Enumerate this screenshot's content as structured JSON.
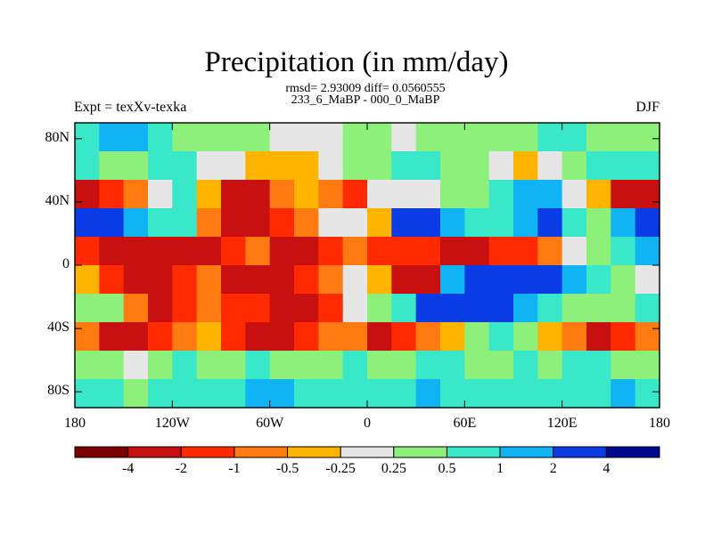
{
  "title": "Precipitation (in mm/day)",
  "stats": {
    "line1": "rmsd= 2.93009 diff= 0.0560555",
    "line2": "233_6_MaBP - 000_0_MaBP"
  },
  "expt": "Expt = texXv-texka",
  "season": "DJF",
  "axes": {
    "x_ticks": [
      "180",
      "120W",
      "60W",
      "0",
      "60E",
      "120E",
      "180"
    ],
    "y_ticks": [
      "80N",
      "40N",
      "0",
      "40S",
      "80S"
    ]
  },
  "colorbar": {
    "colors": [
      "#7a0000",
      "#c81010",
      "#ff2a00",
      "#ff7a10",
      "#ffb400",
      "#e6e6e6",
      "#8cf07a",
      "#38e8c8",
      "#10b4f4",
      "#0a3ce6",
      "#000a90"
    ],
    "labels": [
      "-4",
      "-2",
      "-1",
      "-0.5",
      "-0.25",
      "0.25",
      "0.5",
      "1",
      "2",
      "4"
    ]
  },
  "chart_data": {
    "type": "heatmap",
    "title": "Precipitation (in mm/day)",
    "xlabel": "",
    "ylabel": "",
    "x_range": [
      -180,
      180
    ],
    "y_range": [
      -90,
      90
    ],
    "levels": [
      -4,
      -2,
      -1,
      -0.5,
      -0.25,
      0.25,
      0.5,
      1,
      2,
      4
    ],
    "rows": [
      [
        2,
        3,
        3,
        2,
        1,
        1,
        1,
        1,
        0,
        0,
        0,
        1,
        1,
        0,
        1,
        1,
        1,
        1,
        1,
        2,
        2,
        1,
        1,
        1
      ],
      [
        2,
        1,
        1,
        2,
        2,
        0,
        0,
        -1,
        -1,
        -1,
        0,
        1,
        1,
        2,
        2,
        1,
        1,
        0,
        -1,
        0,
        1,
        2,
        2,
        2
      ],
      [
        -4,
        -3,
        -2,
        0,
        2,
        -1,
        -4,
        -4,
        -2,
        -1,
        -2,
        -3,
        0,
        0,
        0,
        1,
        1,
        2,
        3,
        3,
        0,
        -1,
        -4,
        -4
      ],
      [
        4,
        4,
        3,
        2,
        2,
        -2,
        -4,
        -4,
        -3,
        -2,
        0,
        0,
        -1,
        4,
        4,
        3,
        2,
        2,
        3,
        4,
        2,
        1,
        3,
        4
      ],
      [
        -3,
        -4,
        -4,
        -4,
        -4,
        -4,
        -3,
        -2,
        -4,
        -4,
        -3,
        -2,
        -3,
        -3,
        -3,
        -4,
        -4,
        -3,
        -3,
        -2,
        0,
        1,
        2,
        3
      ],
      [
        -1,
        -3,
        -4,
        -4,
        -3,
        -2,
        -4,
        -4,
        -4,
        -3,
        -2,
        0,
        -1,
        -4,
        -4,
        3,
        4,
        4,
        4,
        4,
        3,
        2,
        1,
        0
      ],
      [
        1,
        1,
        -2,
        -4,
        -3,
        -2,
        -3,
        -3,
        -4,
        -4,
        -3,
        0,
        1,
        2,
        4,
        4,
        4,
        4,
        3,
        2,
        1,
        1,
        1,
        2
      ],
      [
        -2,
        -4,
        -4,
        -3,
        -2,
        -1,
        -3,
        -4,
        -4,
        -3,
        -2,
        -2,
        -4,
        -3,
        -2,
        -1,
        1,
        2,
        1,
        -1,
        -2,
        -4,
        -3,
        -2
      ],
      [
        1,
        1,
        0,
        1,
        2,
        1,
        1,
        2,
        1,
        1,
        1,
        2,
        1,
        1,
        2,
        2,
        1,
        1,
        2,
        1,
        2,
        2,
        1,
        1
      ],
      [
        2,
        2,
        1,
        2,
        2,
        2,
        2,
        3,
        3,
        2,
        2,
        2,
        2,
        2,
        3,
        2,
        2,
        2,
        2,
        2,
        2,
        2,
        3,
        2
      ]
    ]
  }
}
